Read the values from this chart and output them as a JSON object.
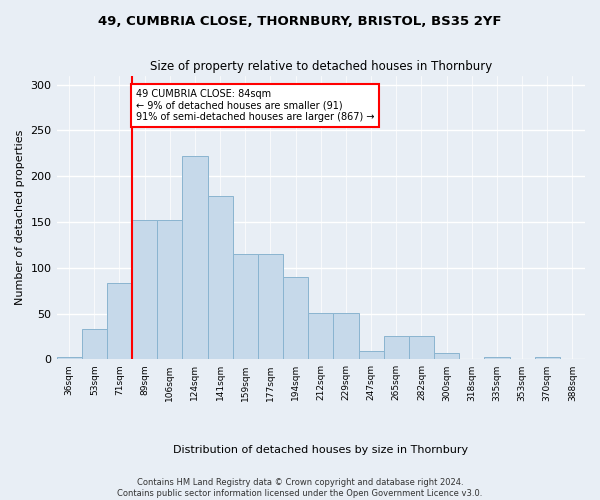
{
  "title": "49, CUMBRIA CLOSE, THORNBURY, BRISTOL, BS35 2YF",
  "subtitle": "Size of property relative to detached houses in Thornbury",
  "xlabel": "Distribution of detached houses by size in Thornbury",
  "ylabel": "Number of detached properties",
  "bin_labels": [
    "36sqm",
    "53sqm",
    "71sqm",
    "89sqm",
    "106sqm",
    "124sqm",
    "141sqm",
    "159sqm",
    "177sqm",
    "194sqm",
    "212sqm",
    "229sqm",
    "247sqm",
    "265sqm",
    "282sqm",
    "300sqm",
    "318sqm",
    "335sqm",
    "353sqm",
    "370sqm",
    "388sqm"
  ],
  "bar_values": [
    3,
    33,
    83,
    152,
    152,
    222,
    178,
    115,
    115,
    90,
    51,
    51,
    9,
    26,
    26,
    7,
    0,
    3,
    0,
    3,
    0
  ],
  "bar_color": "#c6d9ea",
  "bar_edge_color": "#8ab4d0",
  "vline_color": "red",
  "annotation_text": "49 CUMBRIA CLOSE: 84sqm\n← 9% of detached houses are smaller (91)\n91% of semi-detached houses are larger (867) →",
  "annotation_box_color": "white",
  "annotation_box_edge": "red",
  "ylim": [
    0,
    310
  ],
  "yticks": [
    0,
    50,
    100,
    150,
    200,
    250,
    300
  ],
  "footer": "Contains HM Land Registry data © Crown copyright and database right 2024.\nContains public sector information licensed under the Open Government Licence v3.0.",
  "bg_color": "#e8eef5",
  "plot_bg_color": "#e8eef5",
  "title_fontsize": 9.5,
  "subtitle_fontsize": 8.5
}
